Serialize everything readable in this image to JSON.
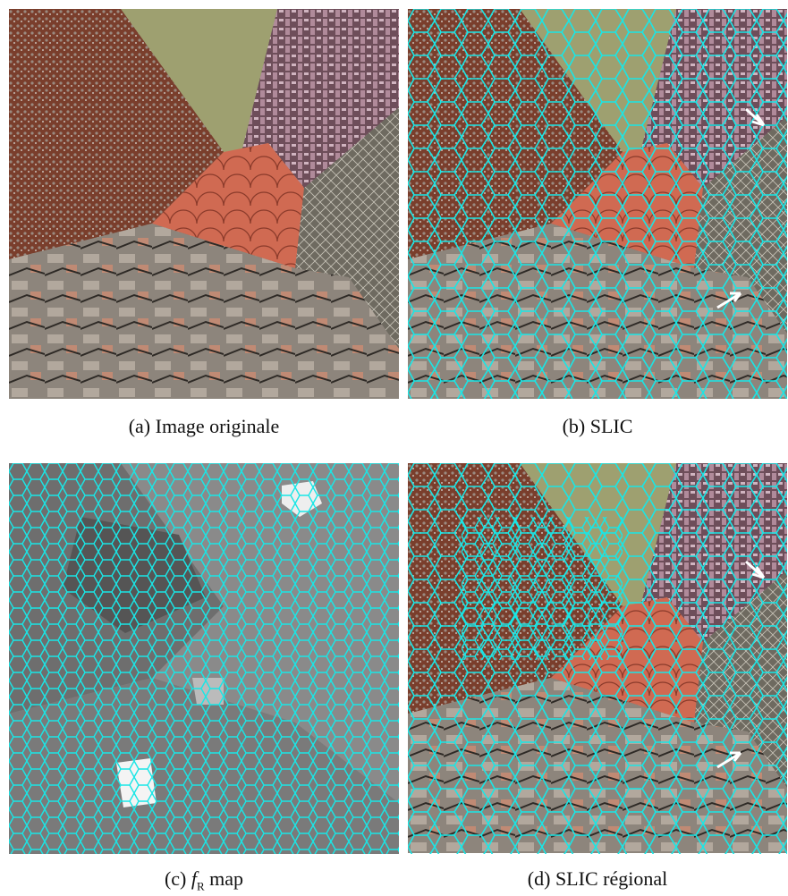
{
  "panels": [
    {
      "label": "(a)",
      "caption": "Image originale"
    },
    {
      "label": "(b)",
      "caption": "SLIC"
    },
    {
      "label": "(c)",
      "symbol": "f",
      "subscript": "R",
      "caption": "map"
    },
    {
      "label": "(d)",
      "caption": "SLIC régional"
    }
  ]
}
